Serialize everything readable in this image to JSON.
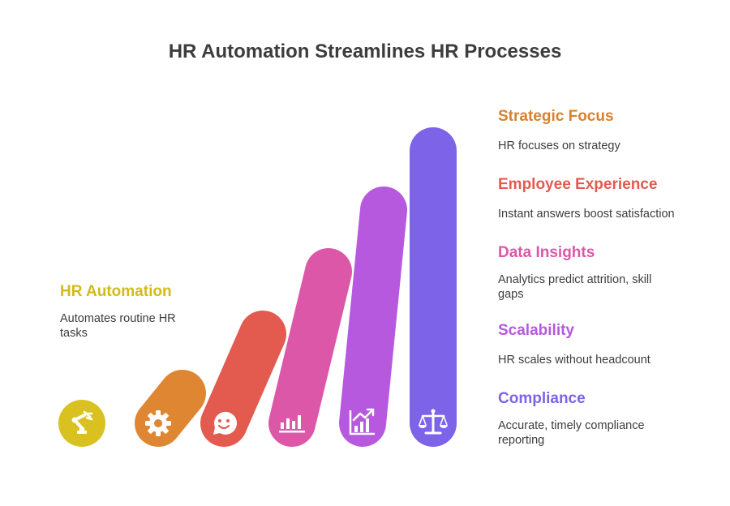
{
  "title": "HR Automation Streamlines HR Processes",
  "steps": [
    {
      "label": "HR Automation",
      "description": "Automates routine HR tasks",
      "color": "#d9c21f",
      "icon": "robot-arm-icon"
    },
    {
      "label": "Strategic Focus",
      "description": "HR focuses on strategy",
      "color": "#df8633",
      "icon": "gear-icon"
    },
    {
      "label": "Employee Experience",
      "description": "Instant answers boost satisfaction",
      "color": "#e35a4f",
      "icon": "smile-chat-icon"
    },
    {
      "label": "Data Insights",
      "description": "Analytics predict attrition, skill gaps",
      "color": "#dd57a9",
      "icon": "bar-chart-icon"
    },
    {
      "label": "Scalability",
      "description": "HR scales without headcount",
      "color": "#b659df",
      "icon": "growth-chart-icon"
    },
    {
      "label": "Compliance",
      "description": "Accurate, timely compliance reporting",
      "color": "#7c63e8",
      "icon": "balance-scale-icon"
    }
  ]
}
